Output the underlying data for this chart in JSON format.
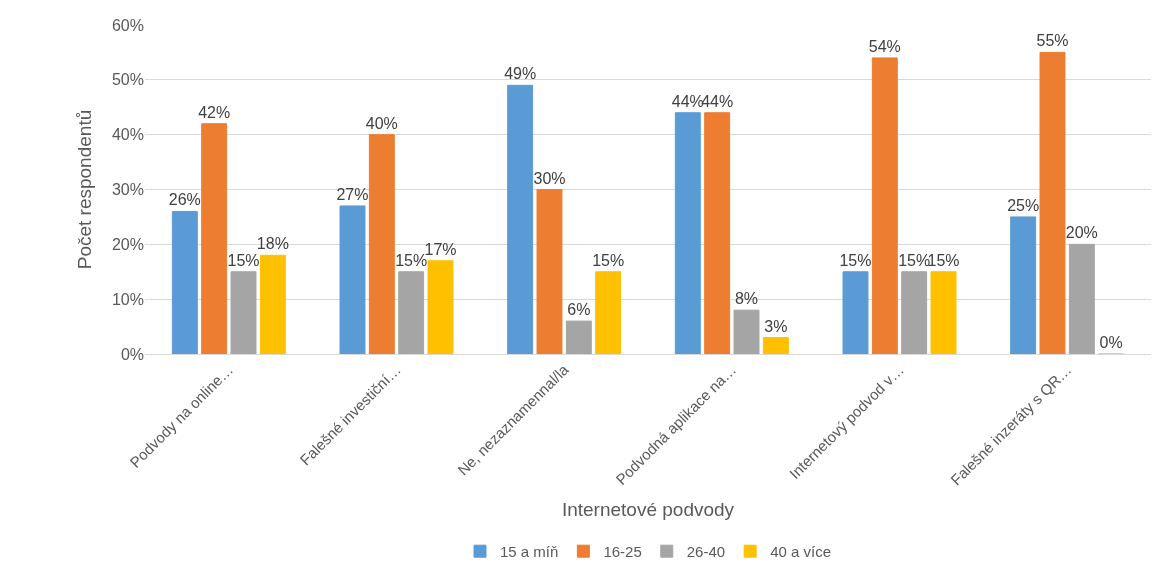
{
  "chart_data": {
    "type": "bar",
    "xlabel": "Internetové podvody",
    "ylabel": "Počet respondentů",
    "categories": [
      "Podvody na online…",
      "Falešné investiční…",
      "Ne, nezaznamennal/la",
      "Podvodná aplikace na…",
      "Internetový podvod v…",
      "Falešné inzeráty s QR…"
    ],
    "series": [
      {
        "name": "15 a míň",
        "color": "#5b9bd5",
        "values": [
          26,
          27,
          49,
          44,
          15,
          25
        ],
        "value_labels": [
          "26%",
          "27%",
          "49%",
          "44%",
          "15%",
          "25%"
        ]
      },
      {
        "name": "16-25",
        "color": "#ed7d31",
        "values": [
          42,
          40,
          30,
          44,
          54,
          55
        ],
        "value_labels": [
          "42%",
          "40%",
          "30%",
          "44%",
          "54%",
          "55%"
        ]
      },
      {
        "name": "26-40",
        "color": "#a5a5a5",
        "values": [
          15,
          15,
          6,
          8,
          15,
          20
        ],
        "value_labels": [
          "15%",
          "15%",
          "6%",
          "8%",
          "15%",
          "20%"
        ]
      },
      {
        "name": "40 a více",
        "color": "#ffc000",
        "values": [
          18,
          17,
          15,
          3,
          15,
          0
        ],
        "value_labels": [
          "18%",
          "17%",
          "15%",
          "3%",
          "15%",
          "0%"
        ]
      }
    ],
    "ylim": [
      0,
      60
    ],
    "yticks": [
      {
        "value": 0,
        "label": "0%"
      },
      {
        "value": 10,
        "label": "10%"
      },
      {
        "value": 20,
        "label": "20%"
      },
      {
        "value": 30,
        "label": "30%"
      },
      {
        "value": 40,
        "label": "40%"
      },
      {
        "value": 50,
        "label": "50%"
      },
      {
        "value": 60,
        "label": "60%"
      }
    ],
    "grid": "y",
    "legend": "bottom"
  }
}
